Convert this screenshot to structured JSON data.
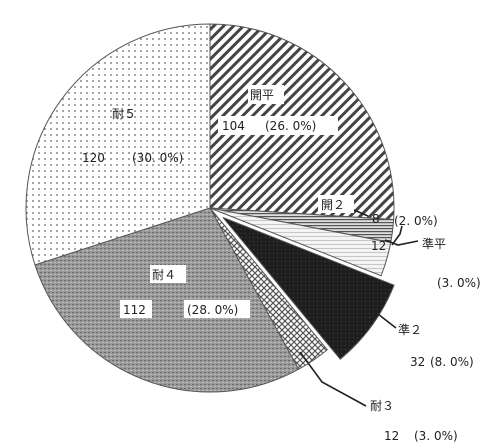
{
  "chart_data": {
    "type": "pie",
    "start_angle_deg": 0,
    "direction": "clockwise",
    "slices": [
      {
        "label": "開平",
        "value": 104,
        "percent": "(26. 0%)",
        "value_text": "104",
        "pattern": "diag",
        "exploded": false
      },
      {
        "label": "開２",
        "value": 8,
        "percent": "(2. 0%)",
        "value_text": "8",
        "pattern": "hlines",
        "exploded": false
      },
      {
        "label": "準平",
        "value": 12,
        "percent": "(3. 0%)",
        "value_text": "12",
        "pattern": "light",
        "exploded": false
      },
      {
        "label": "準２",
        "value": 32,
        "percent": "(8. 0%)",
        "value_text": "32",
        "pattern": "dark",
        "exploded": true
      },
      {
        "label": "耐３",
        "value": 12,
        "percent": "(3. 0%)",
        "value_text": "12",
        "pattern": "cross",
        "exploded": false
      },
      {
        "label": "耐４",
        "value": 112,
        "percent": "(28. 0%)",
        "value_text": "112",
        "pattern": "grain",
        "exploded": false
      },
      {
        "label": "耐５",
        "value": 120,
        "percent": "(30. 0%)",
        "value_text": "120",
        "pattern": "dots",
        "exploded": false
      }
    ]
  }
}
